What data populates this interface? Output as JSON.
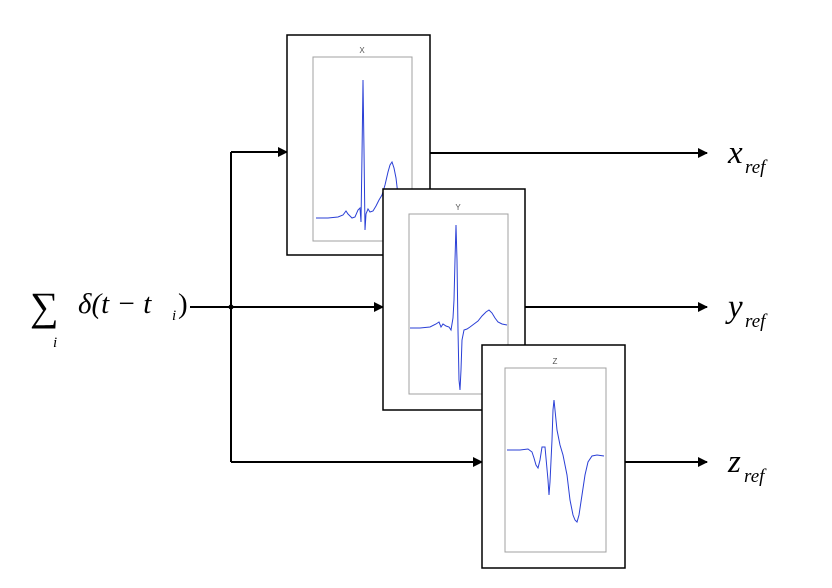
{
  "input": {
    "sum_symbol": "∑",
    "sum_index": "i",
    "delta_expr": "δ(t − t",
    "delta_sub": "i",
    "close_paren": ")"
  },
  "blocks": [
    {
      "title": "X",
      "output_main": "x",
      "output_sub": "ref"
    },
    {
      "title": "Y",
      "output_main": "y",
      "output_sub": "ref"
    },
    {
      "title": "Z",
      "output_main": "z",
      "output_sub": "ref"
    }
  ],
  "colors": {
    "line": "#000000",
    "waveform": "#2a3fd6",
    "plot_frame": "#a0a0a0"
  }
}
